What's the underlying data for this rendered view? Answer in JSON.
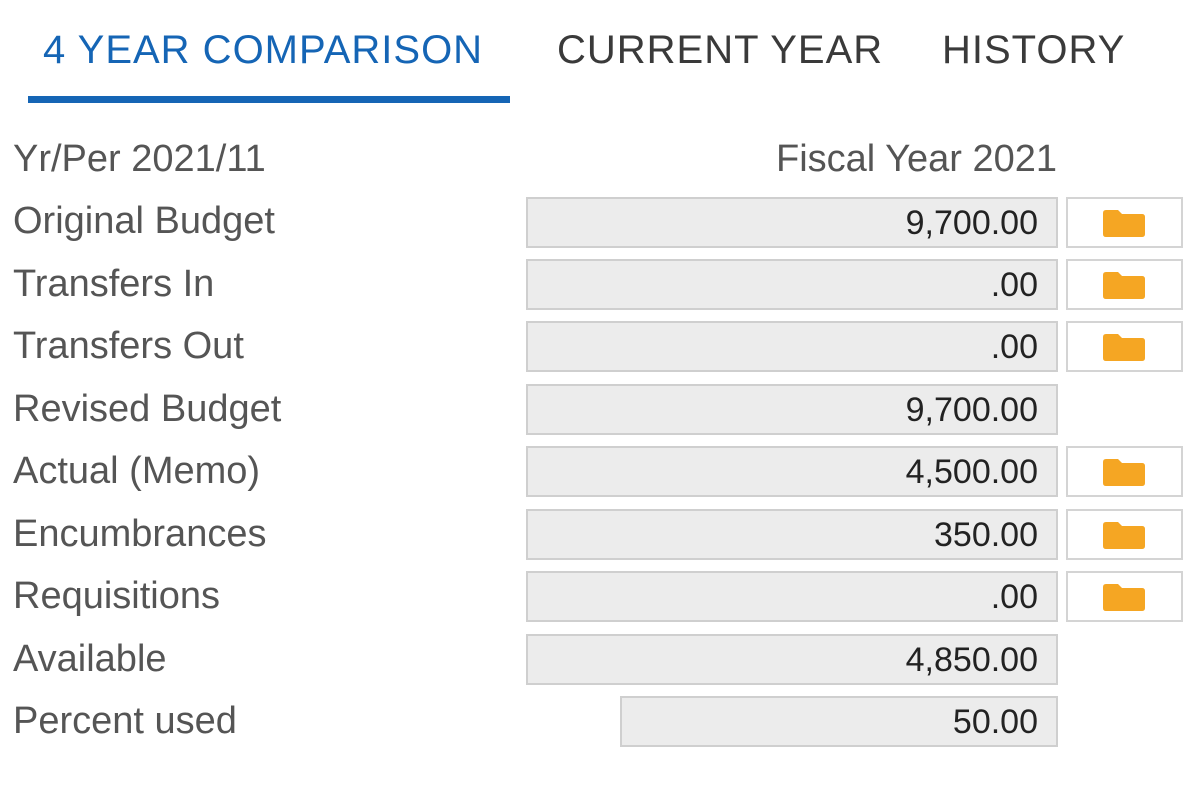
{
  "tabs": [
    {
      "label": "4 YEAR COMPARISON",
      "active": true
    },
    {
      "label": "CURRENT YEAR",
      "active": false
    },
    {
      "label": "HISTORY",
      "active": false
    }
  ],
  "header": {
    "period": "Yr/Per 2021/11",
    "fiscal_year": "Fiscal Year 2021"
  },
  "rows": [
    {
      "label": "Original Budget",
      "value": "9,700.00",
      "has_detail": true
    },
    {
      "label": "Transfers In",
      "value": ".00",
      "has_detail": true
    },
    {
      "label": "Transfers Out",
      "value": ".00",
      "has_detail": true
    },
    {
      "label": "Revised Budget",
      "value": "9,700.00",
      "has_detail": false
    },
    {
      "label": "Actual (Memo)",
      "value": "4,500.00",
      "has_detail": true
    },
    {
      "label": "Encumbrances",
      "value": "350.00",
      "has_detail": true
    },
    {
      "label": "Requisitions",
      "value": ".00",
      "has_detail": true
    },
    {
      "label": "Available",
      "value": "4,850.00",
      "has_detail": false
    },
    {
      "label": "Percent used",
      "value": "50.00",
      "has_detail": false
    }
  ],
  "colors": {
    "accent": "#1565b5",
    "folder_icon": "#f5a623"
  },
  "icons": {
    "detail": "folder-icon"
  }
}
